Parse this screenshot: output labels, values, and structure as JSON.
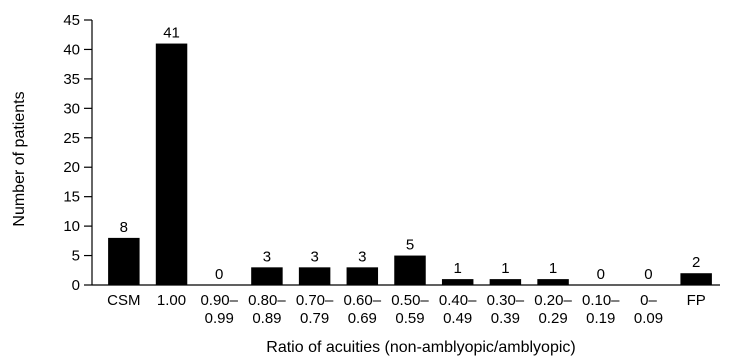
{
  "chart_data": {
    "type": "bar",
    "categories": [
      [
        "CSM"
      ],
      [
        "1.00"
      ],
      [
        "0.90–",
        "0.99"
      ],
      [
        "0.80–",
        "0.89"
      ],
      [
        "0.70–",
        "0.79"
      ],
      [
        "0.60–",
        "0.69"
      ],
      [
        "0.50–",
        "0.59"
      ],
      [
        "0.40–",
        "0.49"
      ],
      [
        "0.30–",
        "0.39"
      ],
      [
        "0.20–",
        "0.29"
      ],
      [
        "0.10–",
        "0.19"
      ],
      [
        "0–",
        "0.09"
      ],
      [
        "FP"
      ]
    ],
    "values": [
      8,
      41,
      0,
      3,
      3,
      3,
      5,
      1,
      1,
      1,
      0,
      0,
      2
    ],
    "data_labels": [
      "8",
      "41",
      "0",
      "3",
      "3",
      "3",
      "5",
      "1",
      "1",
      "1",
      "0",
      "0",
      "2"
    ],
    "xlabel": "Ratio of acuities (non-amblyopic/amblyopic)",
    "ylabel": "Number of patients",
    "ylim": [
      0,
      45
    ],
    "yticks": [
      0,
      5,
      10,
      15,
      20,
      25,
      30,
      35,
      40,
      45
    ],
    "grid": false,
    "bar_color": "#000000"
  }
}
